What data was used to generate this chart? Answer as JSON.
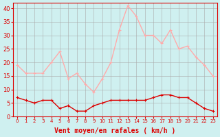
{
  "hours": [
    0,
    1,
    2,
    3,
    4,
    5,
    6,
    7,
    8,
    9,
    10,
    11,
    12,
    13,
    14,
    15,
    16,
    17,
    18,
    19,
    20,
    21,
    22,
    23
  ],
  "wind_avg": [
    7,
    6,
    5,
    6,
    6,
    3,
    4,
    2,
    2,
    4,
    5,
    6,
    6,
    6,
    6,
    6,
    7,
    8,
    8,
    7,
    7,
    5,
    3,
    2
  ],
  "wind_gust": [
    19,
    16,
    16,
    16,
    20,
    24,
    14,
    16,
    12,
    9,
    14,
    20,
    32,
    41,
    37,
    30,
    30,
    27,
    32,
    25,
    26,
    22,
    19,
    15
  ],
  "bg_color": "#cff0f0",
  "grid_color": "#aaaaaa",
  "avg_color": "#dd0000",
  "gust_color": "#ffaaaa",
  "xlabel": "Vent moyen/en rafales ( km/h )",
  "xlabel_color": "#dd0000",
  "tick_color": "#dd0000",
  "ylim": [
    0,
    42
  ],
  "yticks": [
    0,
    5,
    10,
    15,
    20,
    25,
    30,
    35,
    40
  ]
}
